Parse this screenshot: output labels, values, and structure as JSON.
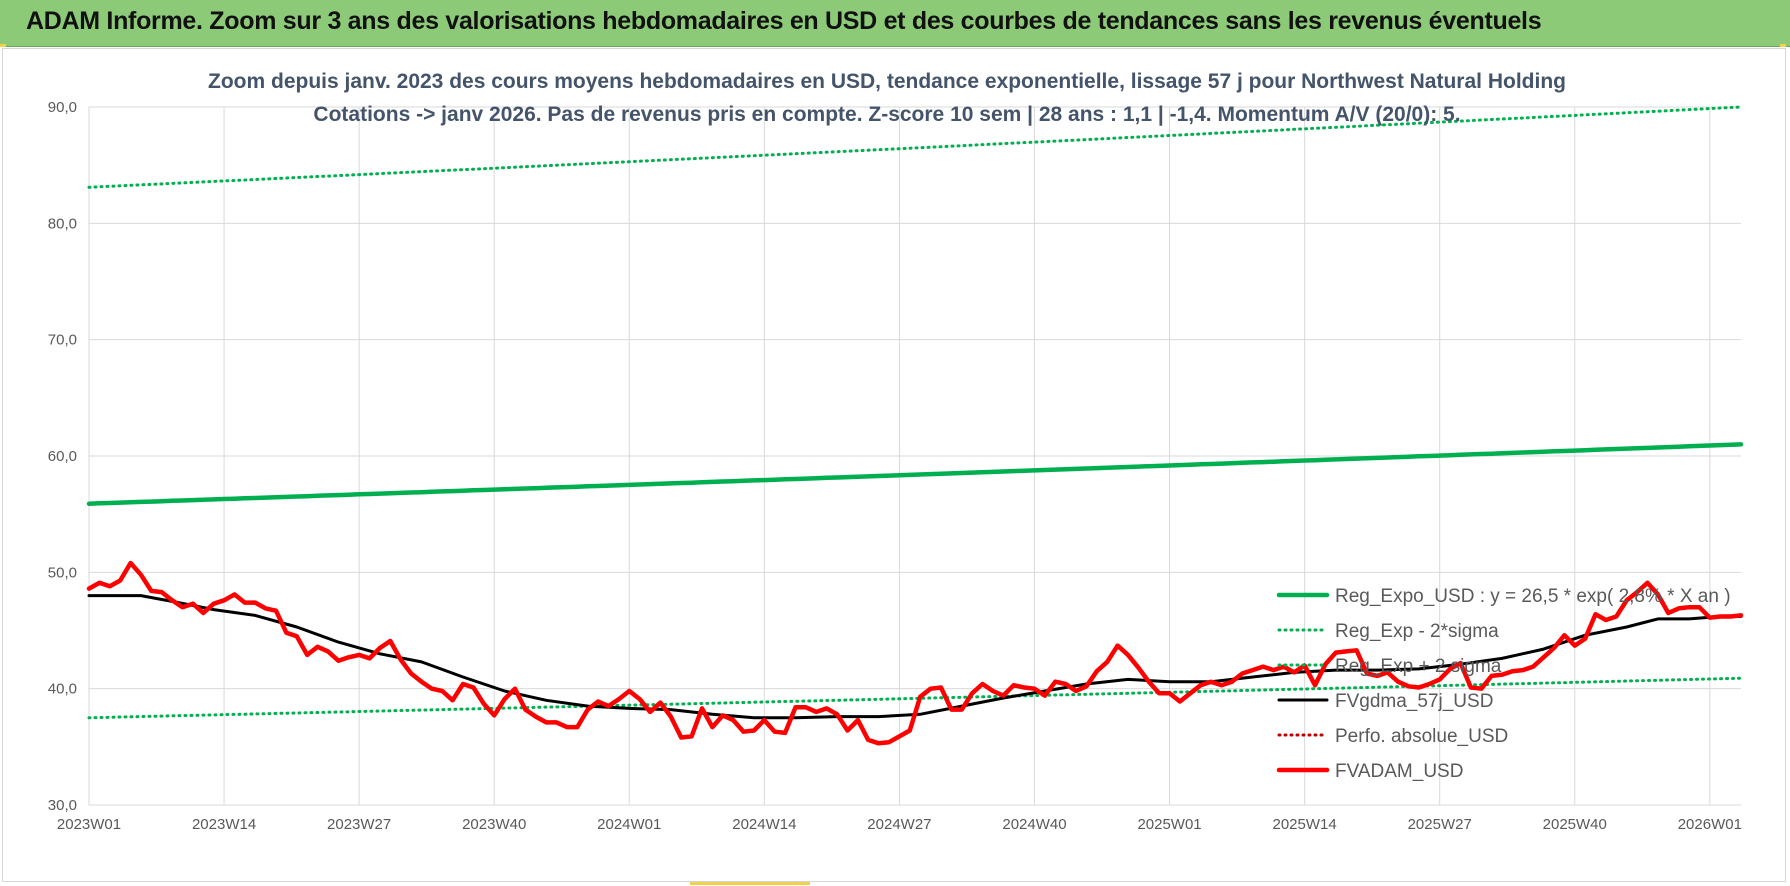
{
  "banner": {
    "title": "ADAM Informe. Zoom sur 3 ans des valorisations hebdomadaires en USD et des courbes de tendances sans les revenus éventuels"
  },
  "chart_data": {
    "type": "line",
    "title_lines": [
      "Zoom depuis janv. 2023 des cours moyens hebdomadaires en USD, tendance exponentielle, lissage 57 j pour Northwest Natural Holding",
      "Cotations -> janv 2026. Pas de revenus pris en compte. Z-score 10 sem | 28 ans : 1,1 | -1,4. Momentum A/V (20/0): 5."
    ],
    "ylim": [
      30,
      90
    ],
    "yticks": [
      "30,0",
      "40,0",
      "50,0",
      "60,0",
      "70,0",
      "80,0",
      "90,0"
    ],
    "ytick_values": [
      30,
      40,
      50,
      60,
      70,
      80,
      90
    ],
    "xticks": [
      "2023W01",
      "2023W14",
      "2023W27",
      "2023W40",
      "2024W01",
      "2024W14",
      "2024W27",
      "2024W40",
      "2025W01",
      "2025W14",
      "2025W27",
      "2025W40",
      "2026W01"
    ],
    "week_count": 160,
    "grid": true,
    "legend_position": "bottom-right",
    "colors": {
      "trend": "#00b050",
      "fvgdma": "#000000",
      "perfo": "#c00000",
      "fvadam": "#ff0000",
      "grid": "#d9d9d9",
      "title": "#44546a"
    },
    "series": [
      {
        "name": "Reg_Expo_USD : y = 26,5 * exp( 2,8% * X an )",
        "style": "solid-thick",
        "color": "#00b050",
        "start": 55.9,
        "end": 61.0
      },
      {
        "name": "Reg_Exp - 2*sigma",
        "style": "dotted",
        "color": "#00b050",
        "start": 37.5,
        "end": 40.9
      },
      {
        "name": "Reg_Exp + 2 sigma",
        "style": "dotted",
        "color": "#00b050",
        "start": 83.1,
        "end": 90.0
      },
      {
        "name": "FVgdma_57j_USD",
        "style": "solid",
        "color": "#000000",
        "points": [
          [
            0,
            48.0
          ],
          [
            5,
            48.0
          ],
          [
            8,
            47.5
          ],
          [
            12,
            46.8
          ],
          [
            16,
            46.3
          ],
          [
            20,
            45.3
          ],
          [
            24,
            44.0
          ],
          [
            28,
            43.0
          ],
          [
            32,
            42.3
          ],
          [
            36,
            41.0
          ],
          [
            40,
            39.8
          ],
          [
            44,
            39.0
          ],
          [
            48,
            38.5
          ],
          [
            52,
            38.3
          ],
          [
            56,
            38.2
          ],
          [
            60,
            37.8
          ],
          [
            64,
            37.5
          ],
          [
            68,
            37.5
          ],
          [
            72,
            37.6
          ],
          [
            76,
            37.6
          ],
          [
            80,
            37.8
          ],
          [
            84,
            38.5
          ],
          [
            88,
            39.2
          ],
          [
            92,
            39.8
          ],
          [
            96,
            40.4
          ],
          [
            100,
            40.8
          ],
          [
            104,
            40.6
          ],
          [
            108,
            40.6
          ],
          [
            112,
            41.0
          ],
          [
            116,
            41.4
          ],
          [
            120,
            41.6
          ],
          [
            124,
            41.6
          ],
          [
            128,
            41.7
          ],
          [
            132,
            42.1
          ],
          [
            136,
            42.6
          ],
          [
            140,
            43.4
          ],
          [
            144,
            44.6
          ],
          [
            148,
            45.3
          ],
          [
            151,
            46.0
          ],
          [
            154,
            46.0
          ],
          [
            157,
            46.2
          ],
          [
            159,
            46.2
          ]
        ]
      },
      {
        "name": "Perfo. absolue_USD",
        "style": "dotted",
        "color": "#c00000"
      },
      {
        "name": "FVADAM_USD",
        "style": "solid-thick",
        "color": "#ff0000",
        "points": [
          [
            0,
            48.6
          ],
          [
            1,
            49.1
          ],
          [
            2,
            48.8
          ],
          [
            3,
            49.3
          ],
          [
            4,
            50.8
          ],
          [
            5,
            49.8
          ],
          [
            6,
            48.4
          ],
          [
            7,
            48.3
          ],
          [
            8,
            47.6
          ],
          [
            9,
            47.0
          ],
          [
            10,
            47.3
          ],
          [
            11,
            46.5
          ],
          [
            12,
            47.3
          ],
          [
            13,
            47.6
          ],
          [
            14,
            48.1
          ],
          [
            15,
            47.4
          ],
          [
            16,
            47.4
          ],
          [
            17,
            46.9
          ],
          [
            18,
            46.7
          ],
          [
            19,
            44.8
          ],
          [
            20,
            44.5
          ],
          [
            21,
            42.9
          ],
          [
            22,
            43.6
          ],
          [
            23,
            43.2
          ],
          [
            24,
            42.4
          ],
          [
            25,
            42.7
          ],
          [
            26,
            42.9
          ],
          [
            27,
            42.6
          ],
          [
            28,
            43.5
          ],
          [
            29,
            44.1
          ],
          [
            30,
            42.5
          ],
          [
            31,
            41.3
          ],
          [
            32,
            40.6
          ],
          [
            33,
            40.0
          ],
          [
            34,
            39.8
          ],
          [
            35,
            39.0
          ],
          [
            36,
            40.4
          ],
          [
            37,
            40.1
          ],
          [
            38,
            38.7
          ],
          [
            39,
            37.7
          ],
          [
            40,
            39.1
          ],
          [
            41,
            40.0
          ],
          [
            42,
            38.2
          ],
          [
            43,
            37.6
          ],
          [
            44,
            37.1
          ],
          [
            45,
            37.1
          ],
          [
            46,
            36.7
          ],
          [
            47,
            36.7
          ],
          [
            48,
            38.2
          ],
          [
            49,
            38.9
          ],
          [
            50,
            38.5
          ],
          [
            51,
            39.1
          ],
          [
            52,
            39.8
          ],
          [
            53,
            39.1
          ],
          [
            54,
            38.0
          ],
          [
            55,
            38.8
          ],
          [
            56,
            37.6
          ],
          [
            57,
            35.8
          ],
          [
            58,
            35.9
          ],
          [
            59,
            38.3
          ],
          [
            60,
            36.7
          ],
          [
            61,
            37.7
          ],
          [
            62,
            37.3
          ],
          [
            63,
            36.3
          ],
          [
            64,
            36.4
          ],
          [
            65,
            37.3
          ],
          [
            66,
            36.3
          ],
          [
            67,
            36.2
          ],
          [
            68,
            38.4
          ],
          [
            69,
            38.4
          ],
          [
            70,
            38.0
          ],
          [
            71,
            38.3
          ],
          [
            72,
            37.8
          ],
          [
            73,
            36.4
          ],
          [
            74,
            37.3
          ],
          [
            75,
            35.6
          ],
          [
            76,
            35.3
          ],
          [
            77,
            35.4
          ],
          [
            78,
            35.9
          ],
          [
            79,
            36.4
          ],
          [
            80,
            39.3
          ],
          [
            81,
            40.0
          ],
          [
            82,
            40.1
          ],
          [
            83,
            38.2
          ],
          [
            84,
            38.2
          ],
          [
            85,
            39.6
          ],
          [
            86,
            40.4
          ],
          [
            87,
            39.8
          ],
          [
            88,
            39.4
          ],
          [
            89,
            40.3
          ],
          [
            90,
            40.1
          ],
          [
            91,
            40.0
          ],
          [
            92,
            39.4
          ],
          [
            93,
            40.6
          ],
          [
            94,
            40.4
          ],
          [
            95,
            39.8
          ],
          [
            96,
            40.2
          ],
          [
            97,
            41.5
          ],
          [
            98,
            42.3
          ],
          [
            99,
            43.7
          ],
          [
            100,
            42.9
          ],
          [
            101,
            41.8
          ],
          [
            102,
            40.6
          ],
          [
            103,
            39.6
          ],
          [
            104,
            39.6
          ],
          [
            105,
            38.9
          ],
          [
            106,
            39.6
          ],
          [
            107,
            40.3
          ],
          [
            108,
            40.6
          ],
          [
            109,
            40.3
          ],
          [
            110,
            40.6
          ],
          [
            111,
            41.3
          ],
          [
            112,
            41.6
          ],
          [
            113,
            41.9
          ],
          [
            114,
            41.6
          ],
          [
            115,
            41.9
          ],
          [
            116,
            41.4
          ],
          [
            117,
            42.0
          ],
          [
            118,
            40.3
          ],
          [
            119,
            42.1
          ],
          [
            120,
            43.1
          ],
          [
            121,
            43.2
          ],
          [
            122,
            43.3
          ],
          [
            123,
            41.3
          ],
          [
            124,
            41.1
          ],
          [
            125,
            41.4
          ],
          [
            126,
            40.6
          ],
          [
            127,
            40.2
          ],
          [
            128,
            40.1
          ],
          [
            129,
            40.4
          ],
          [
            130,
            40.8
          ],
          [
            131,
            41.7
          ],
          [
            132,
            42.2
          ],
          [
            133,
            40.1
          ],
          [
            134,
            40.0
          ],
          [
            135,
            41.1
          ],
          [
            136,
            41.2
          ],
          [
            137,
            41.5
          ],
          [
            138,
            41.6
          ],
          [
            139,
            41.9
          ],
          [
            140,
            42.7
          ],
          [
            141,
            43.5
          ],
          [
            142,
            44.6
          ],
          [
            143,
            43.7
          ],
          [
            144,
            44.3
          ],
          [
            145,
            46.4
          ],
          [
            146,
            45.9
          ],
          [
            147,
            46.2
          ],
          [
            148,
            47.6
          ],
          [
            149,
            48.3
          ],
          [
            150,
            49.1
          ],
          [
            151,
            48.1
          ],
          [
            152,
            46.5
          ],
          [
            153,
            46.9
          ],
          [
            154,
            47.0
          ],
          [
            155,
            47.0
          ],
          [
            156,
            46.1
          ],
          [
            157,
            46.2
          ],
          [
            158,
            46.2
          ],
          [
            159,
            46.3
          ]
        ]
      }
    ]
  }
}
